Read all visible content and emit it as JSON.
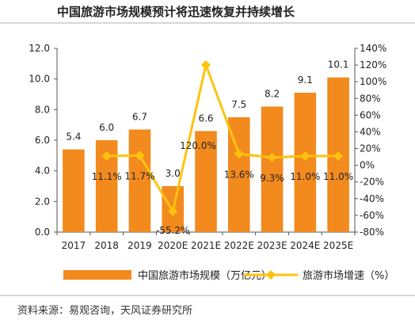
{
  "title": "中国旅游市场规模预计将迅速恢复并持续增长",
  "source": "资料来源：易观咨询，天风证券研究所",
  "chart_data": {
    "type": "bar",
    "categories": [
      "2017",
      "2018",
      "2019",
      "2020E",
      "2021E",
      "2022E",
      "2023E",
      "2024E",
      "2025E"
    ],
    "series": [
      {
        "name": "中国旅游市场规模（万亿元）",
        "type": "bar",
        "axis": "left",
        "values": [
          5.4,
          6.0,
          6.7,
          3.0,
          6.6,
          7.5,
          8.2,
          9.1,
          10.1
        ],
        "labels": [
          "5.4",
          "6.0",
          "6.7",
          "3.0",
          "6.6",
          "7.5",
          "8.2",
          "9.1",
          "10.1"
        ],
        "color": "#F28A1E"
      },
      {
        "name": "旅游市场增速（%）",
        "type": "line",
        "axis": "right",
        "values": [
          null,
          11.1,
          11.7,
          -55.2,
          120.0,
          13.6,
          9.3,
          11.0,
          11.0
        ],
        "labels": [
          "",
          "11.1%",
          "11.7%",
          "-55.2%",
          "120.0%",
          "13.6%",
          "9.3%",
          "11.0%",
          "11.0%"
        ],
        "color": "#FFC20E"
      }
    ],
    "y_left": {
      "lim": [
        0,
        12
      ],
      "ticks": [
        "0.0",
        "2.0",
        "4.0",
        "6.0",
        "8.0",
        "10.0",
        "12.0"
      ]
    },
    "y_right": {
      "lim": [
        -80,
        140
      ],
      "ticks": [
        "-80%",
        "-60%",
        "-40%",
        "-20%",
        "0%",
        "20%",
        "40%",
        "60%",
        "80%",
        "100%",
        "120%",
        "140%"
      ]
    },
    "grid": false,
    "legend_position": "bottom"
  }
}
